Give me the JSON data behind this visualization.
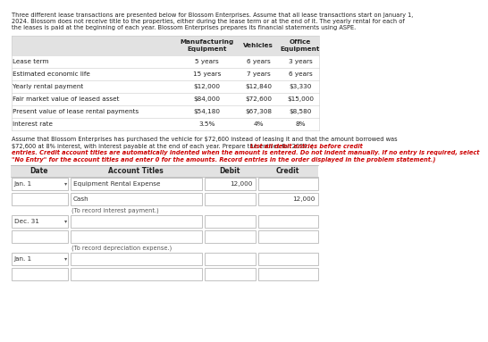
{
  "intro_lines": [
    "Three different lease transactions are presented below for Blossom Enterprises. Assume that all lease transactions start on January 1,",
    "2024. Blossom does not receive title to the properties, either during the lease term or at the end of it. The yearly rental for each of",
    "the leases is paid at the beginning of each year. Blossom Enterprises prepares its financial statements using ASPE."
  ],
  "table_headers": [
    "",
    "Manufacturing\nEquipment",
    "Vehicles",
    "Office\nEquipment"
  ],
  "table_rows": [
    [
      "Lease term",
      "5 years",
      "6 years",
      "3 years"
    ],
    [
      "Estimated economic life",
      "15 years",
      "7 years",
      "6 years"
    ],
    [
      "Yearly rental payment",
      "$12,000",
      "$12,840",
      "$3,330"
    ],
    [
      "Fair market value of leased asset",
      "$84,000",
      "$72,600",
      "$15,000"
    ],
    [
      "Present value of lease rental payments",
      "$54,180",
      "$67,308",
      "$8,580"
    ],
    [
      "Interest rate",
      "3.5%",
      "4%",
      "8%"
    ]
  ],
  "mid_black1": "Assume that Blossom Enterprises has purchased the vehicle for $72,600 instead of leasing it and that the amount borrowed was",
  "mid_black2": "$72,600 at 8% interest, with interest payable at the end of each year. Prepare the entries for 2024. (",
  "mid_red1": "List all debit entries before credit",
  "mid_red2": "entries. Credit account titles are automatically indented when the amount is entered. Do not indent manually. If no entry is required, select",
  "mid_red3": "\"No Entry\" for the account titles and enter 0 for the amounts. Record entries in the order displayed in the problem statement.)",
  "journal_headers": [
    "Date",
    "Account Titles",
    "Debit",
    "Credit"
  ],
  "entry_rows": [
    {
      "date": "Jan. 1",
      "dropdown": true,
      "account": "Equipment Rental Expense",
      "debit": "12,000",
      "credit": ""
    },
    {
      "date": "",
      "dropdown": false,
      "account": "Cash",
      "debit": "",
      "credit": "12,000"
    },
    {
      "date": "Dec. 31",
      "dropdown": true,
      "account": "",
      "debit": "",
      "credit": ""
    },
    {
      "date": "",
      "dropdown": false,
      "account": "",
      "debit": "",
      "credit": ""
    },
    {
      "date": "Jan. 1",
      "dropdown": true,
      "account": "",
      "debit": "",
      "credit": ""
    },
    {
      "date": "",
      "dropdown": false,
      "account": "",
      "debit": "",
      "credit": ""
    }
  ],
  "note1": "(To record interest payment.)",
  "note2": "(To record depreciation expense.)",
  "bg": "#ffffff",
  "header_bg": "#e2e2e2",
  "red": "#cc0000",
  "dark": "#222222",
  "gray": "#555555",
  "box_edge": "#aaaaaa",
  "line_color": "#cccccc"
}
